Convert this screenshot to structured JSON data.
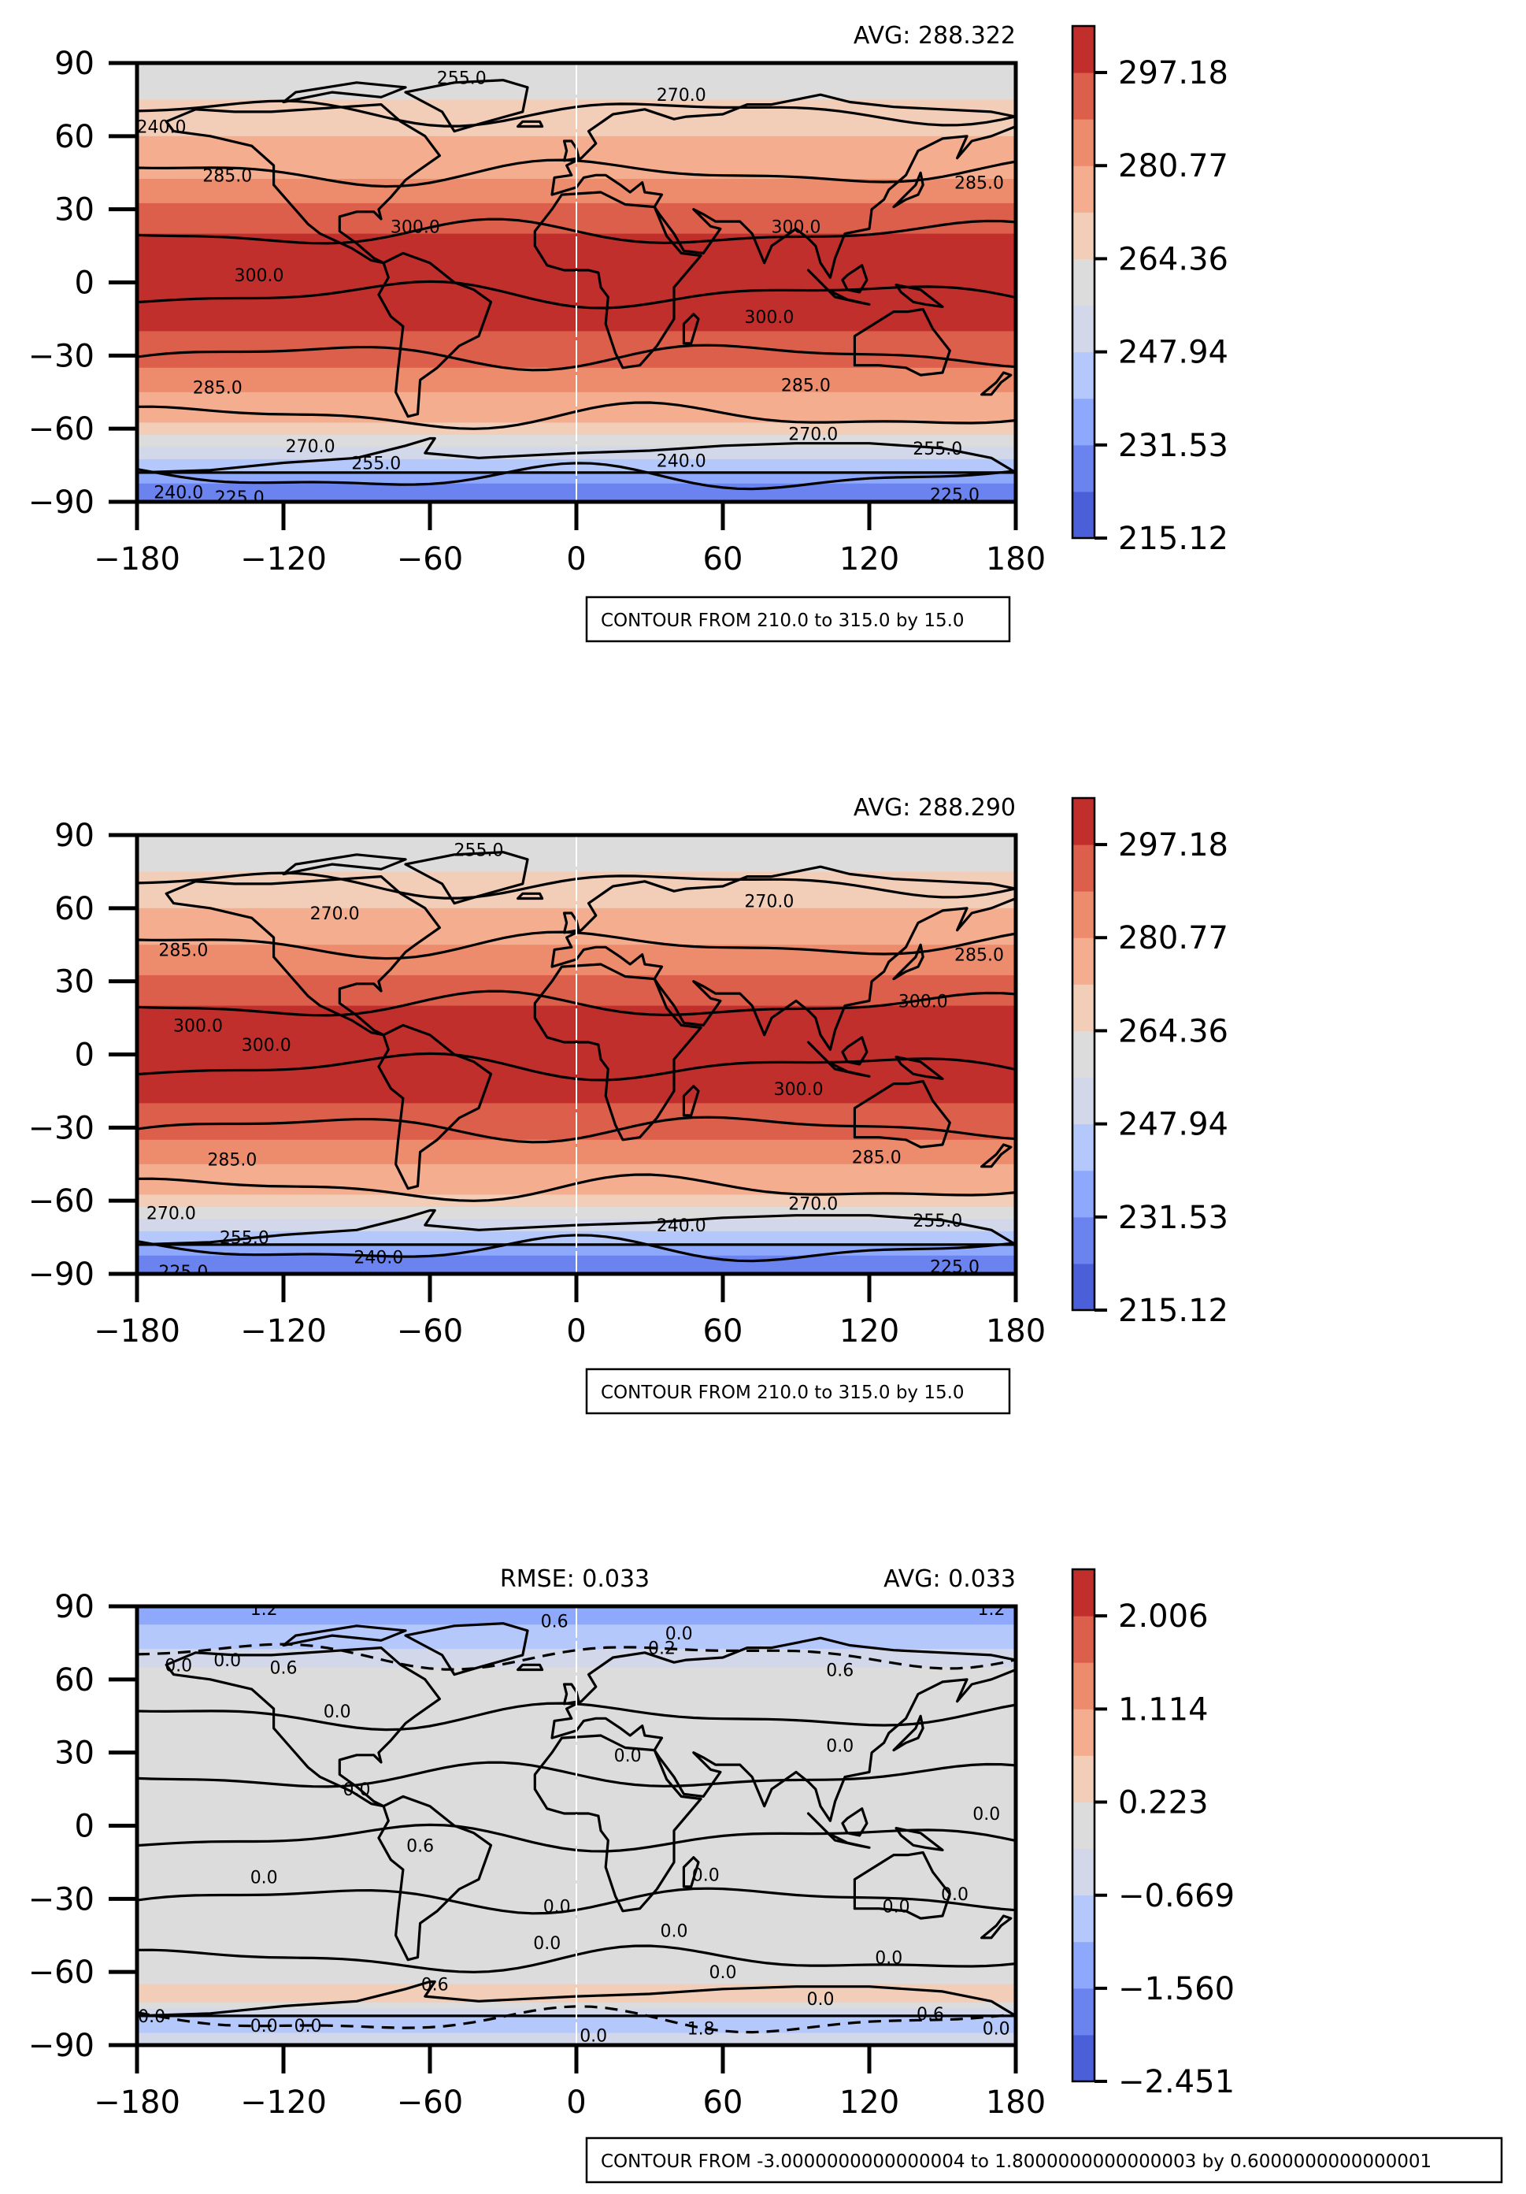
{
  "chart_data": [
    {
      "type": "heatmap",
      "panel": "top",
      "title_right": "AVG: 288.322",
      "title_left": "",
      "x_ticks": [
        "−180",
        "−120",
        "−60",
        "0",
        "60",
        "120",
        "180"
      ],
      "y_ticks": [
        "90",
        "60",
        "30",
        "0",
        "−30",
        "−60",
        "−90"
      ],
      "xlim": [
        -180,
        180
      ],
      "ylim": [
        -90,
        90
      ],
      "colorbar": {
        "range": [
          215.12,
          305.38
        ],
        "ticks": [
          "297.18",
          "280.77",
          "264.36",
          "247.94",
          "231.53",
          "215.12"
        ],
        "tick_values": [
          297.18,
          280.77,
          264.36,
          247.94,
          231.53,
          215.12
        ],
        "levels": 11
      },
      "zonal_profile": {
        "lat": [
          90,
          80,
          70,
          60,
          50,
          40,
          30,
          20,
          10,
          0,
          -10,
          -20,
          -30,
          -40,
          -50,
          -60,
          -70,
          -80,
          -90
        ],
        "value": [
          258,
          262,
          266,
          272,
          277,
          283,
          291,
          298,
          301,
          301,
          300,
          297,
          292,
          284,
          278,
          271,
          252,
          233,
          222
        ]
      },
      "contour_labels": [
        {
          "text": "255.0",
          "lon": -47,
          "lat": 84
        },
        {
          "text": "270.0",
          "lon": 43,
          "lat": 77
        },
        {
          "text": "240.0",
          "lon": -170,
          "lat": 64
        },
        {
          "text": "285.0",
          "lon": -143,
          "lat": 44
        },
        {
          "text": "285.0",
          "lon": 165,
          "lat": 41
        },
        {
          "text": "300.0",
          "lon": -66,
          "lat": 23
        },
        {
          "text": "300.0",
          "lon": 90,
          "lat": 23
        },
        {
          "text": "300.0",
          "lon": -130,
          "lat": 3
        },
        {
          "text": "300.0",
          "lon": 79,
          "lat": -14
        },
        {
          "text": "285.0",
          "lon": -147,
          "lat": -43
        },
        {
          "text": "285.0",
          "lon": 94,
          "lat": -42
        },
        {
          "text": "270.0",
          "lon": -109,
          "lat": -67
        },
        {
          "text": "270.0",
          "lon": 97,
          "lat": -62
        },
        {
          "text": "255.0",
          "lon": -82,
          "lat": -74
        },
        {
          "text": "255.0",
          "lon": 148,
          "lat": -68
        },
        {
          "text": "240.0",
          "lon": 43,
          "lat": -73
        },
        {
          "text": "240.0",
          "lon": -163,
          "lat": -86
        },
        {
          "text": "225.0",
          "lon": -138,
          "lat": -88
        },
        {
          "text": "225.0",
          "lon": 155,
          "lat": -87
        }
      ],
      "note": "CONTOUR FROM 210.0 to 315.0 by 15.0"
    },
    {
      "type": "heatmap",
      "panel": "middle",
      "title_right": "AVG: 288.290",
      "title_left": "",
      "x_ticks": [
        "−180",
        "−120",
        "−60",
        "0",
        "60",
        "120",
        "180"
      ],
      "y_ticks": [
        "90",
        "60",
        "30",
        "0",
        "−30",
        "−60",
        "−90"
      ],
      "xlim": [
        -180,
        180
      ],
      "ylim": [
        -90,
        90
      ],
      "colorbar": {
        "range": [
          215.12,
          305.38
        ],
        "ticks": [
          "297.18",
          "280.77",
          "264.36",
          "247.94",
          "231.53",
          "215.12"
        ],
        "tick_values": [
          297.18,
          280.77,
          264.36,
          247.94,
          231.53,
          215.12
        ],
        "levels": 11
      },
      "zonal_profile": {
        "lat": [
          90,
          80,
          70,
          60,
          50,
          40,
          30,
          20,
          10,
          0,
          -10,
          -20,
          -30,
          -40,
          -50,
          -60,
          -70,
          -80,
          -90
        ],
        "value": [
          258,
          262,
          266,
          272,
          278,
          284,
          291,
          298,
          301,
          301,
          300,
          297,
          292,
          285,
          278,
          271,
          252,
          233,
          222
        ]
      },
      "contour_labels": [
        {
          "text": "255.0",
          "lon": -40,
          "lat": 84
        },
        {
          "text": "270.0",
          "lon": -99,
          "lat": 58
        },
        {
          "text": "270.0",
          "lon": 79,
          "lat": 63
        },
        {
          "text": "285.0",
          "lon": -161,
          "lat": 43
        },
        {
          "text": "285.0",
          "lon": 165,
          "lat": 41
        },
        {
          "text": "300.0",
          "lon": -155,
          "lat": 12
        },
        {
          "text": "300.0",
          "lon": -127,
          "lat": 4
        },
        {
          "text": "300.0",
          "lon": 142,
          "lat": 22
        },
        {
          "text": "300.0",
          "lon": 91,
          "lat": -14
        },
        {
          "text": "285.0",
          "lon": -141,
          "lat": -43
        },
        {
          "text": "285.0",
          "lon": 123,
          "lat": -42
        },
        {
          "text": "270.0",
          "lon": -166,
          "lat": -65
        },
        {
          "text": "270.0",
          "lon": 97,
          "lat": -61
        },
        {
          "text": "255.0",
          "lon": -136,
          "lat": -75
        },
        {
          "text": "255.0",
          "lon": 148,
          "lat": -68
        },
        {
          "text": "240.0",
          "lon": 43,
          "lat": -70
        },
        {
          "text": "240.0",
          "lon": -81,
          "lat": -83
        },
        {
          "text": "225.0",
          "lon": -161,
          "lat": -89
        },
        {
          "text": "225.0",
          "lon": 155,
          "lat": -87
        }
      ],
      "note": "CONTOUR FROM 210.0 to 315.0 by 15.0"
    },
    {
      "type": "heatmap",
      "panel": "bottom",
      "title_right": "AVG: 0.033",
      "title_left": "RMSE: 0.033",
      "x_ticks": [
        "−180",
        "−120",
        "−60",
        "0",
        "60",
        "120",
        "180"
      ],
      "y_ticks": [
        "90",
        "60",
        "30",
        "0",
        "−30",
        "−60",
        "−90"
      ],
      "xlim": [
        -180,
        180
      ],
      "ylim": [
        -90,
        90
      ],
      "colorbar": {
        "range": [
          -2.451,
          2.452
        ],
        "ticks": [
          "2.006",
          "1.114",
          "0.223",
          "−0.669",
          "−1.560",
          "−2.451"
        ],
        "tick_values": [
          2.006,
          1.114,
          0.223,
          -0.669,
          -1.56,
          -2.451
        ],
        "levels": 11
      },
      "zonal_profile": {
        "lat": [
          90,
          80,
          70,
          60,
          50,
          40,
          30,
          20,
          10,
          0,
          -10,
          -20,
          -30,
          -40,
          -50,
          -60,
          -70,
          -80,
          -90
        ],
        "value": [
          -1.5,
          -1.0,
          -0.6,
          0.1,
          0.1,
          0.0,
          0.0,
          0.0,
          0.0,
          0.0,
          0.0,
          0.0,
          0.0,
          0.0,
          0.0,
          0.1,
          0.4,
          -1.0,
          -0.3
        ]
      },
      "contour_labels": [
        {
          "text": "1.2",
          "lon": -128,
          "lat": 89
        },
        {
          "text": "1.2",
          "lon": 170,
          "lat": 89
        },
        {
          "text": "0.6",
          "lon": -9,
          "lat": 84
        },
        {
          "text": "0.0",
          "lon": 42,
          "lat": 79
        },
        {
          "text": "0.6",
          "lon": 108,
          "lat": 64
        },
        {
          "text": "0.0",
          "lon": -163,
          "lat": 66
        },
        {
          "text": "0.0",
          "lon": -143,
          "lat": 68
        },
        {
          "text": "0.6",
          "lon": -120,
          "lat": 65
        },
        {
          "text": "0.0",
          "lon": -98,
          "lat": 47
        },
        {
          "text": "0.2",
          "lon": 35,
          "lat": 73
        },
        {
          "text": "0.0",
          "lon": 21,
          "lat": 29
        },
        {
          "text": "0.0",
          "lon": 108,
          "lat": 33
        },
        {
          "text": "0.0",
          "lon": -90,
          "lat": 15
        },
        {
          "text": "0.0",
          "lon": 168,
          "lat": 5
        },
        {
          "text": "0.6",
          "lon": -64,
          "lat": -8
        },
        {
          "text": "0.0",
          "lon": -128,
          "lat": -21
        },
        {
          "text": "0.0",
          "lon": -8,
          "lat": -33
        },
        {
          "text": "0.0",
          "lon": 53,
          "lat": -20
        },
        {
          "text": "0.0",
          "lon": 131,
          "lat": -33
        },
        {
          "text": "0.0",
          "lon": 155,
          "lat": -28
        },
        {
          "text": "0.0",
          "lon": 40,
          "lat": -43
        },
        {
          "text": "0.0",
          "lon": -12,
          "lat": -48
        },
        {
          "text": "0.0",
          "lon": 60,
          "lat": -60
        },
        {
          "text": "0.0",
          "lon": 128,
          "lat": -54
        },
        {
          "text": "0.6",
          "lon": -58,
          "lat": -65
        },
        {
          "text": "0.6",
          "lon": 145,
          "lat": -77
        },
        {
          "text": "0.0",
          "lon": -174,
          "lat": -78
        },
        {
          "text": "0.0",
          "lon": -128,
          "lat": -82
        },
        {
          "text": "0.0",
          "lon": -110,
          "lat": -82
        },
        {
          "text": "0.0",
          "lon": 7,
          "lat": -86
        },
        {
          "text": "0.0",
          "lon": 100,
          "lat": -71
        },
        {
          "text": "1.8",
          "lon": 51,
          "lat": -83
        },
        {
          "text": "0.0",
          "lon": 172,
          "lat": -83
        }
      ],
      "note": "CONTOUR FROM -3.0000000000000004 to 1.8000000000000003 by 0.6000000000000001"
    }
  ]
}
